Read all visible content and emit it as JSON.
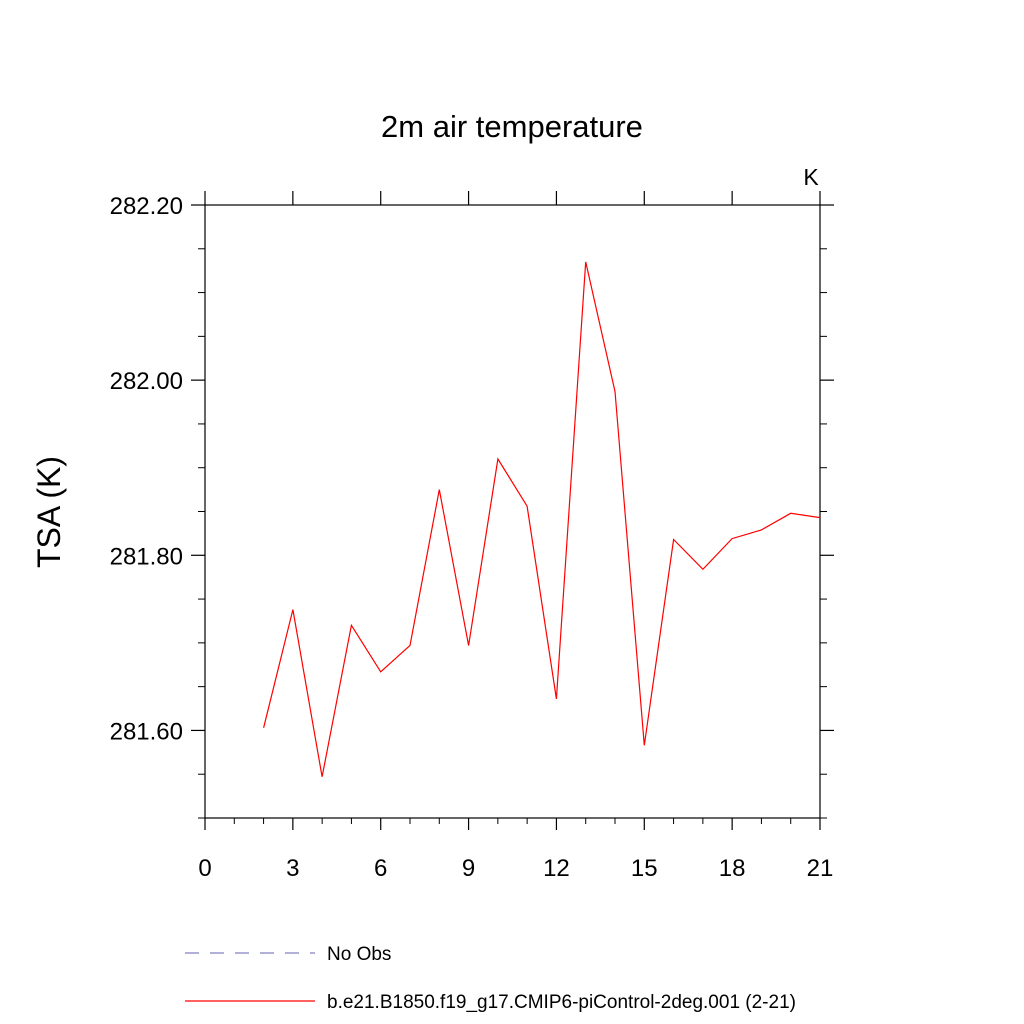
{
  "chart_data": {
    "type": "line",
    "title": "2m air temperature",
    "ylabel": "TSA  (K)",
    "units_label": "K",
    "xlim": [
      0,
      21
    ],
    "ylim": [
      281.5,
      282.22
    ],
    "x_ticks": [
      0,
      3,
      6,
      9,
      12,
      15,
      18,
      21
    ],
    "x_tick_labels": [
      "0",
      "3",
      "6",
      "9",
      "12",
      "15",
      "18",
      "21"
    ],
    "y_ticks": [
      281.6,
      281.8,
      282.0,
      282.2
    ],
    "y_tick_labels": [
      "281.60",
      "281.80",
      "282.00",
      "282.20"
    ],
    "y_minor_step": 0.05,
    "x": [
      2,
      3,
      4,
      5,
      6,
      7,
      8,
      9,
      10,
      11,
      12,
      13,
      14,
      15,
      16,
      17,
      18,
      19,
      20,
      21
    ],
    "series": [
      {
        "name": "b.e21.B1850.f19_g17.CMIP6-piControl-2deg.001 (2-21)",
        "color": "#ff0000",
        "style": "solid",
        "values": [
          281.603,
          281.738,
          281.547,
          281.72,
          281.667,
          281.697,
          281.875,
          281.697,
          281.91,
          281.856,
          281.636,
          282.135,
          281.987,
          281.583,
          281.818,
          281.784,
          281.819,
          281.829,
          281.848,
          281.843
        ]
      }
    ],
    "legend": [
      {
        "label": "No Obs",
        "color": "#8080c0",
        "style": "dashed"
      },
      {
        "label": "b.e21.B1850.f19_g17.CMIP6-piControl-2deg.001 (2-21)",
        "color": "#ff0000",
        "style": "solid"
      }
    ],
    "grid": false,
    "legend_position": "bottom"
  }
}
